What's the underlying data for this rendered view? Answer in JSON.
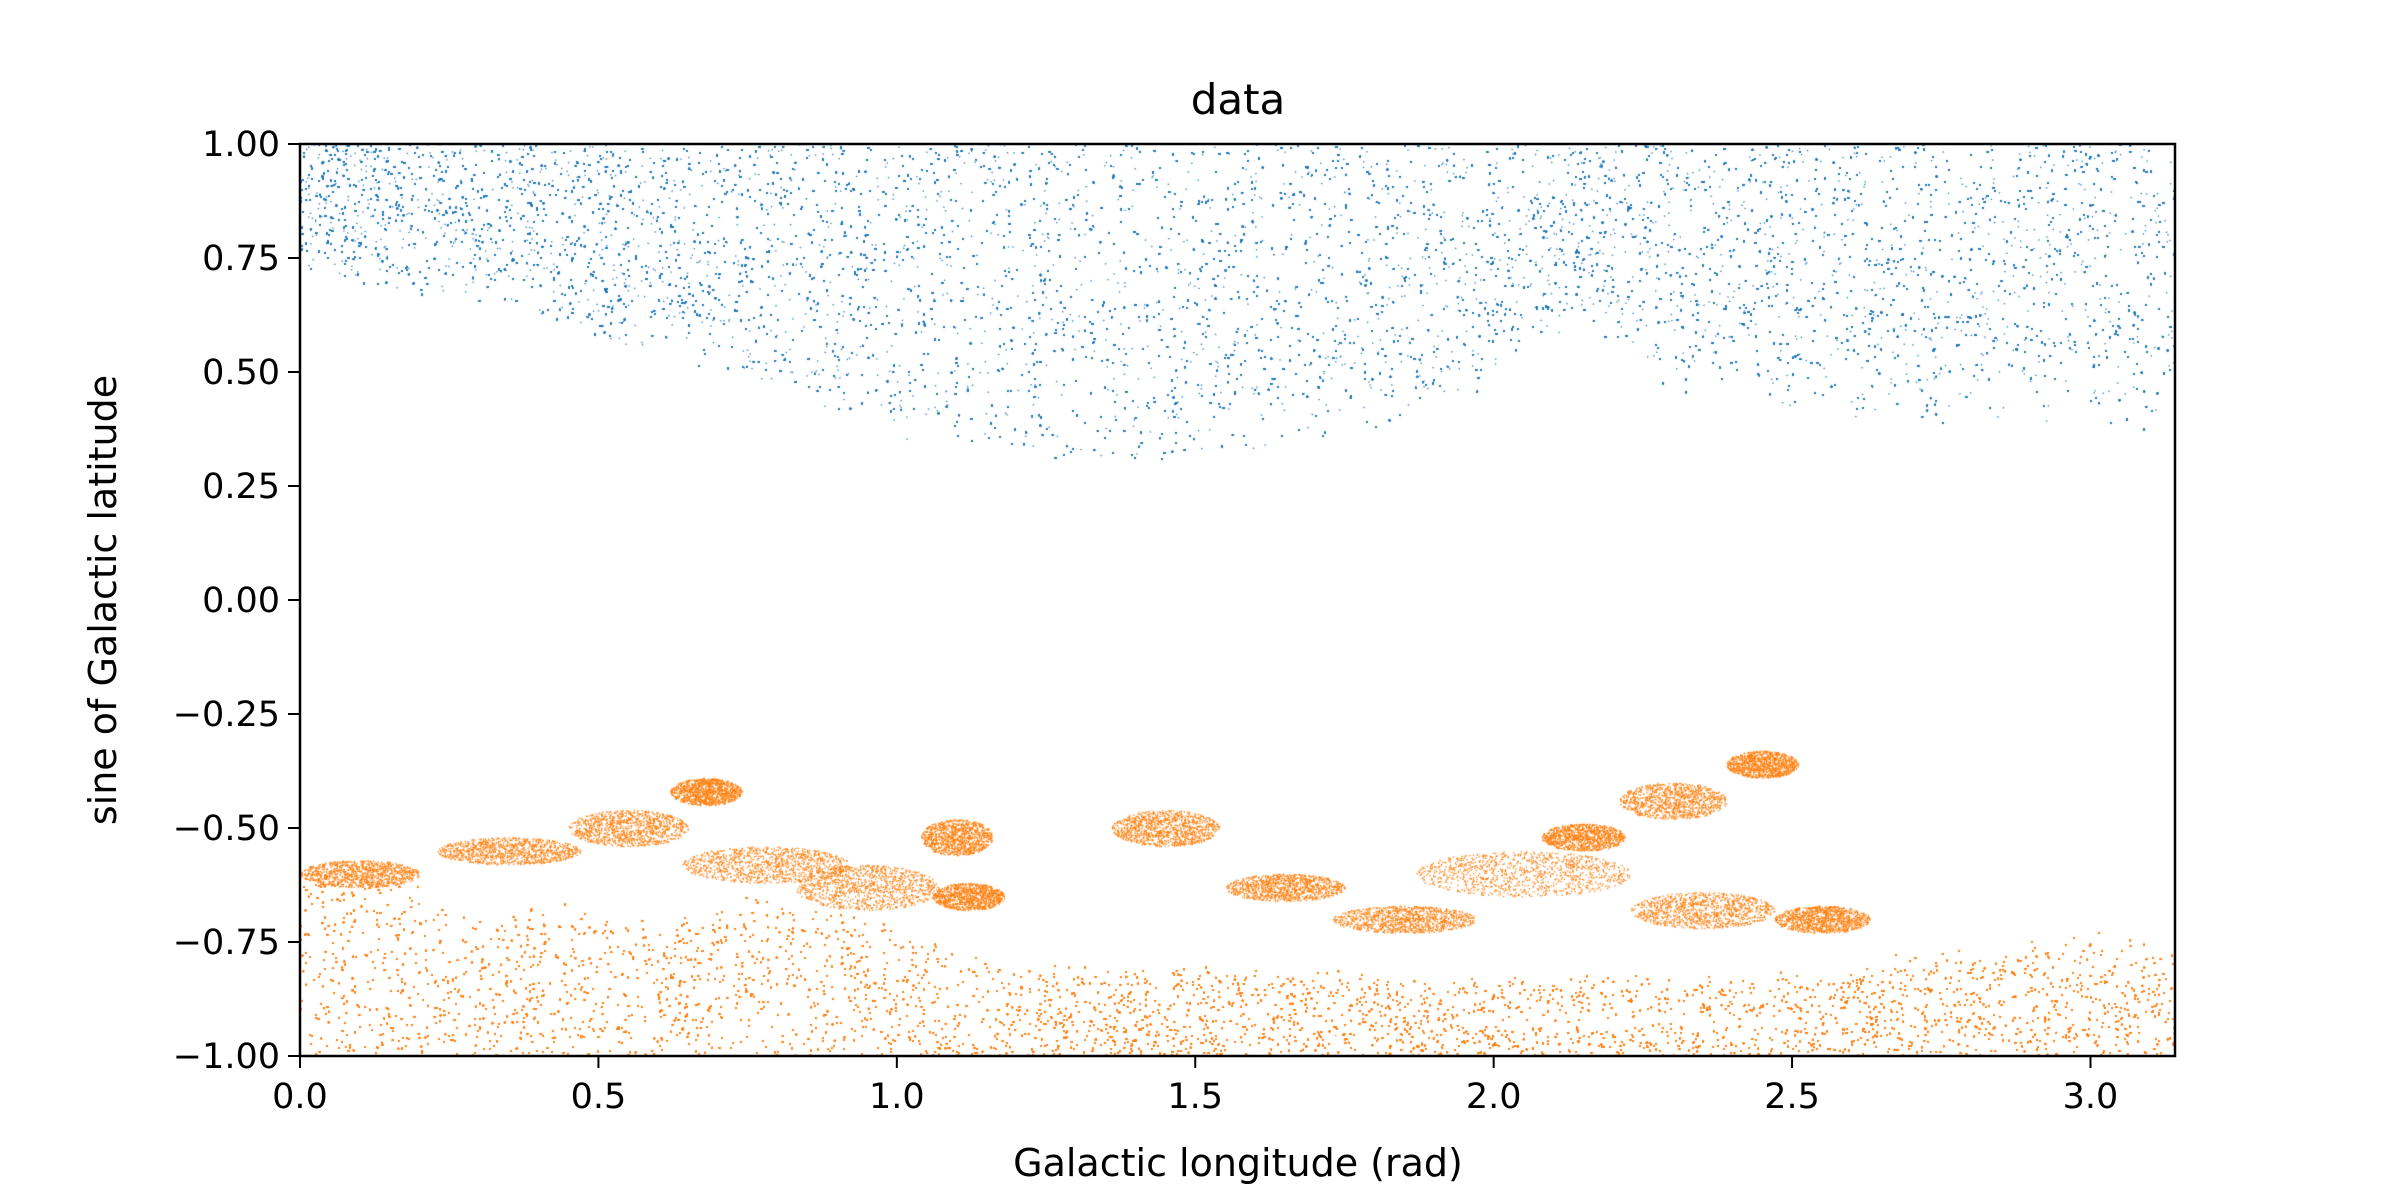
{
  "chart_data": {
    "type": "scatter",
    "title": "data",
    "xlabel": "Galactic longitude (rad)",
    "ylabel": "sine of Galactic latitude",
    "xlim": [
      0.0,
      3.1416
    ],
    "ylim": [
      -1.0,
      1.0
    ],
    "x_ticks": [
      0.0,
      0.5,
      1.0,
      1.5,
      2.0,
      2.5,
      3.0
    ],
    "x_tick_labels": [
      "0.0",
      "0.5",
      "1.0",
      "1.5",
      "2.0",
      "2.5",
      "3.0"
    ],
    "y_ticks": [
      1.0,
      0.75,
      0.5,
      0.25,
      0.0,
      -0.25,
      -0.5,
      -0.75,
      -1.0
    ],
    "y_tick_labels": [
      "1.00",
      "0.75",
      "0.50",
      "0.25",
      "0.00",
      "−0.25",
      "−0.50",
      "−0.75",
      "−1.00"
    ],
    "grid": false,
    "legend": false,
    "series": [
      {
        "color": "#1f77b4",
        "region": "northern",
        "lower_edge": [
          [
            0.0,
            0.74
          ],
          [
            0.15,
            0.7
          ],
          [
            0.3,
            0.66
          ],
          [
            0.45,
            0.6
          ],
          [
            0.6,
            0.56
          ],
          [
            0.75,
            0.5
          ],
          [
            0.9,
            0.43
          ],
          [
            1.05,
            0.36
          ],
          [
            1.2,
            0.34
          ],
          [
            1.35,
            0.31
          ],
          [
            1.5,
            0.33
          ],
          [
            1.65,
            0.36
          ],
          [
            1.8,
            0.4
          ],
          [
            1.95,
            0.46
          ],
          [
            2.05,
            0.55
          ],
          [
            2.15,
            0.62
          ],
          [
            2.3,
            0.47
          ],
          [
            2.45,
            0.46
          ],
          [
            2.6,
            0.42
          ],
          [
            2.75,
            0.4
          ],
          [
            2.9,
            0.42
          ],
          [
            3.05,
            0.41
          ],
          [
            3.1416,
            0.38
          ]
        ],
        "approx_points": 120000
      },
      {
        "color": "#ff7f0e",
        "region": "southern",
        "upper_edge_dense": [
          [
            0.0,
            -0.58
          ],
          [
            0.15,
            -0.62
          ],
          [
            0.3,
            -0.72
          ],
          [
            0.45,
            -0.67
          ],
          [
            0.6,
            -0.72
          ],
          [
            0.75,
            -0.66
          ],
          [
            0.9,
            -0.7
          ],
          [
            1.05,
            -0.76
          ],
          [
            1.2,
            -0.8
          ],
          [
            1.35,
            -0.82
          ],
          [
            1.5,
            -0.81
          ],
          [
            1.65,
            -0.82
          ],
          [
            1.8,
            -0.83
          ],
          [
            1.95,
            -0.83
          ],
          [
            2.1,
            -0.84
          ],
          [
            2.25,
            -0.84
          ],
          [
            2.4,
            -0.83
          ],
          [
            2.55,
            -0.84
          ],
          [
            2.7,
            -0.79
          ],
          [
            2.85,
            -0.77
          ],
          [
            3.0,
            -0.75
          ],
          [
            3.1416,
            -0.78
          ]
        ],
        "patchy_upper_bound": [
          [
            0.0,
            -0.56
          ],
          [
            0.3,
            -0.52
          ],
          [
            0.6,
            -0.4
          ],
          [
            1.0,
            -0.44
          ],
          [
            1.5,
            -0.43
          ],
          [
            2.0,
            -0.46
          ],
          [
            2.3,
            -0.36
          ],
          [
            2.5,
            -0.31
          ],
          [
            2.6,
            -0.34
          ],
          [
            2.8,
            -0.76
          ]
        ],
        "approx_points": 90000
      }
    ]
  }
}
